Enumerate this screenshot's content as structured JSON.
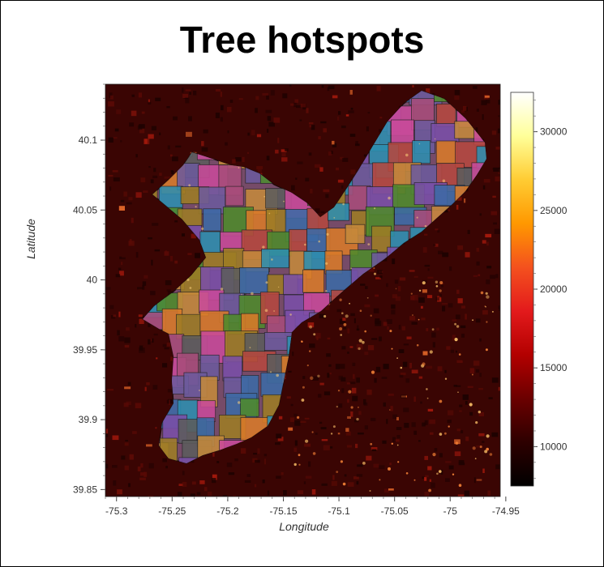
{
  "title": "Tree hotspots",
  "chart_data": {
    "type": "heatmap",
    "title": "Tree hotspots",
    "xlabel": "Longitude",
    "ylabel": "Latitude",
    "xlim": [
      -75.31,
      -74.955
    ],
    "ylim": [
      39.845,
      40.14
    ],
    "xticks": [
      "-75.3",
      "-75.25",
      "-75.2",
      "-75.15",
      "-75.1",
      "-75.05",
      "-75",
      "-74.95"
    ],
    "xtick_values": [
      -75.3,
      -75.25,
      -75.2,
      -75.15,
      -75.1,
      -75.05,
      -75.0,
      -74.95
    ],
    "yticks": [
      "40.1",
      "40.05",
      "40",
      "39.95",
      "39.9",
      "39.85"
    ],
    "ytick_values": [
      40.1,
      40.05,
      40.0,
      39.95,
      39.9,
      39.85
    ],
    "colorbar": {
      "ticks": [
        "30000",
        "25000",
        "20000",
        "15000",
        "10000"
      ],
      "tick_values": [
        30000,
        25000,
        20000,
        15000,
        10000
      ],
      "range": [
        7500,
        32500
      ],
      "colormap": [
        "#000000",
        "#2d0000",
        "#6b0000",
        "#b30000",
        "#e31a1c",
        "#f4511e",
        "#ff9800",
        "#ffcc33",
        "#ffff99",
        "#ffffff"
      ]
    },
    "overlay": "Philadelphia neighborhood boundaries (categorical colors)",
    "grid": false
  },
  "colors": {
    "background": "#3a0503",
    "neighborhood_palette": [
      "#c94a9a",
      "#2e8fb0",
      "#7a4fa8",
      "#4f8a2c",
      "#d97a2a",
      "#9e7d25",
      "#b6483f",
      "#6d5a9c",
      "#3d6aa6",
      "#a84d7a",
      "#5d5d5d",
      "#c4893c"
    ]
  }
}
